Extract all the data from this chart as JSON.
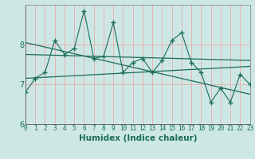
{
  "xlabel": "Humidex (Indice chaleur)",
  "bg_color": "#cde8e4",
  "line_color": "#1a6b5a",
  "grid_color": "#f0a0a0",
  "x_data": [
    0,
    1,
    2,
    3,
    4,
    5,
    6,
    7,
    8,
    9,
    10,
    11,
    12,
    13,
    14,
    15,
    16,
    17,
    18,
    19,
    20,
    21,
    22,
    23
  ],
  "y_data": [
    6.8,
    7.15,
    7.3,
    8.1,
    7.75,
    7.9,
    8.85,
    7.65,
    7.7,
    8.55,
    7.3,
    7.55,
    7.65,
    7.3,
    7.6,
    8.1,
    8.3,
    7.55,
    7.3,
    6.55,
    6.9,
    6.55,
    7.25,
    7.0
  ],
  "trend1_x": [
    0,
    23
  ],
  "trend1_y": [
    7.75,
    7.6
  ],
  "trend2_x": [
    0,
    23
  ],
  "trend2_y": [
    7.15,
    7.45
  ],
  "trend3_x": [
    0,
    23
  ],
  "trend3_y": [
    8.05,
    6.75
  ],
  "xlim": [
    0,
    23
  ],
  "ylim": [
    6.0,
    9.0
  ],
  "yticks": [
    6,
    7,
    8
  ],
  "xticks": [
    0,
    1,
    2,
    3,
    4,
    5,
    6,
    7,
    8,
    9,
    10,
    11,
    12,
    13,
    14,
    15,
    16,
    17,
    18,
    19,
    20,
    21,
    22,
    23
  ],
  "tick_fontsize": 5.5,
  "xlabel_fontsize": 7.5
}
